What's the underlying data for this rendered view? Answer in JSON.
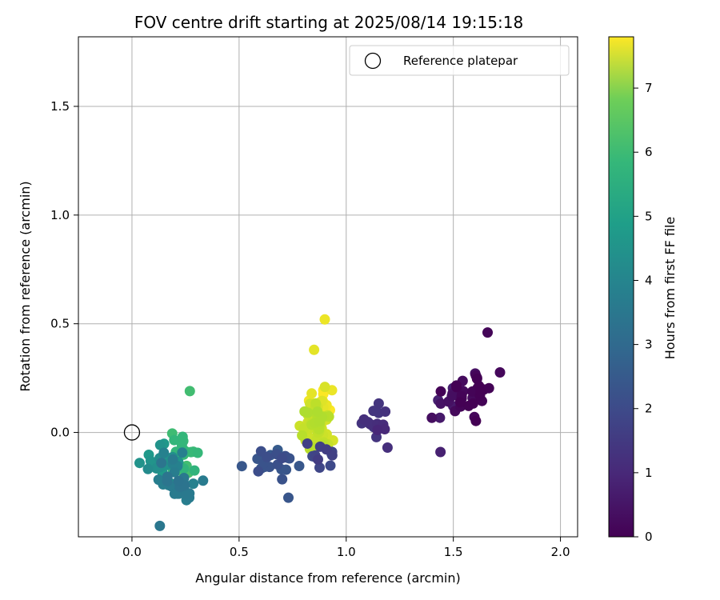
{
  "chart_data": {
    "type": "scatter",
    "title": "FOV centre drift starting at 2025/08/14 19:15:18",
    "xlabel": "Angular distance from reference (arcmin)",
    "ylabel": "Rotation from reference (arcmin)",
    "xlim": [
      -0.25,
      2.08
    ],
    "ylim": [
      -0.48,
      1.82
    ],
    "xticks": [
      "0.0",
      "0.5",
      "1.0",
      "1.5",
      "2.0"
    ],
    "yticks": [
      "0.0",
      "0.5",
      "1.0",
      "1.5"
    ],
    "grid": true,
    "legend": {
      "position": "top-right",
      "entries": [
        {
          "label": "Reference platepar",
          "marker": "open-circle"
        }
      ]
    },
    "reference_point": {
      "x": 0.0,
      "y": 0.0
    },
    "colorbar": {
      "label": "Hours from first FF file",
      "colormap": "viridis",
      "range": [
        0,
        7.8
      ],
      "ticks": [
        "0",
        "1",
        "2",
        "3",
        "4",
        "5",
        "6",
        "7"
      ]
    },
    "clusters": [
      {
        "center": [
          1.58,
          0.17
        ],
        "spread": [
          0.09,
          0.09
        ],
        "count": 30,
        "color_value": 0.1
      },
      {
        "center": [
          1.47,
          0.14
        ],
        "spread": [
          0.06,
          0.08
        ],
        "count": 12,
        "color_value": 0.5
      },
      {
        "center": [
          1.12,
          0.05
        ],
        "spread": [
          0.1,
          0.08
        ],
        "count": 18,
        "color_value": 1.1
      },
      {
        "center": [
          0.88,
          -0.1
        ],
        "spread": [
          0.07,
          0.06
        ],
        "count": 12,
        "color_value": 1.6
      },
      {
        "center": [
          0.65,
          -0.13
        ],
        "spread": [
          0.1,
          0.05
        ],
        "count": 22,
        "color_value": 2.0
      },
      {
        "center": [
          0.2,
          -0.22
        ],
        "spread": [
          0.08,
          0.08
        ],
        "count": 28,
        "color_value": 3.2
      },
      {
        "center": [
          0.12,
          -0.15
        ],
        "spread": [
          0.07,
          0.1
        ],
        "count": 25,
        "color_value": 4.0
      },
      {
        "center": [
          0.24,
          -0.1
        ],
        "spread": [
          0.05,
          0.08
        ],
        "count": 25,
        "color_value": 5.3
      },
      {
        "center": [
          0.86,
          0.03
        ],
        "spread": [
          0.05,
          0.09
        ],
        "count": 60,
        "color_value": 7.1
      },
      {
        "center": [
          0.88,
          0.1
        ],
        "spread": [
          0.04,
          0.08
        ],
        "count": 35,
        "color_value": 7.6
      }
    ],
    "points": [
      {
        "x": 0.9,
        "y": 0.52,
        "v": 7.6
      },
      {
        "x": 1.66,
        "y": 0.46,
        "v": 0.1
      },
      {
        "x": 0.27,
        "y": 0.19,
        "v": 5.4
      },
      {
        "x": 0.73,
        "y": -0.3,
        "v": 2.1
      },
      {
        "x": 0.13,
        "y": -0.43,
        "v": 3.1
      },
      {
        "x": 0.85,
        "y": 0.38,
        "v": 7.5
      },
      {
        "x": 1.44,
        "y": -0.09,
        "v": 0.7
      }
    ]
  }
}
